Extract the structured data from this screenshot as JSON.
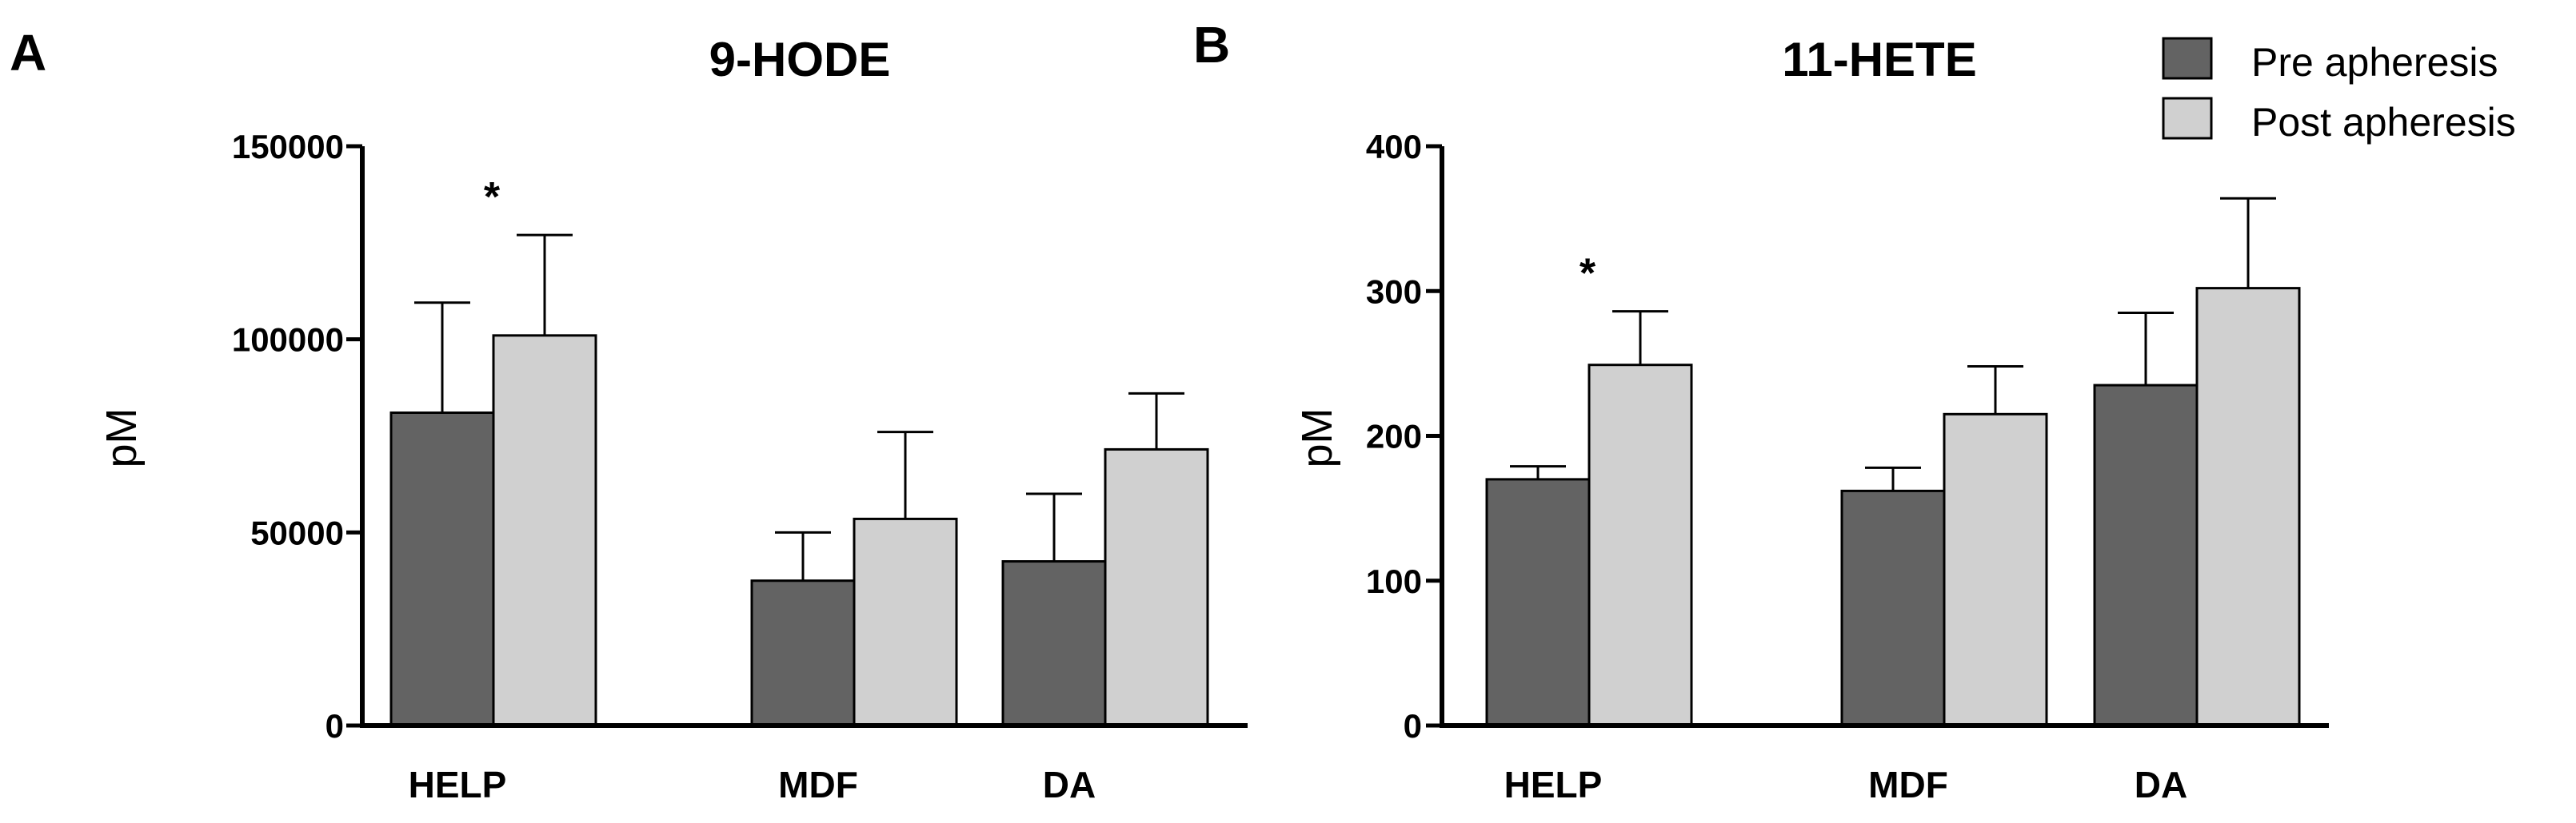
{
  "chart_data": [
    {
      "panel": "A",
      "type": "bar",
      "title": "9-HODE",
      "ylabel": "pM",
      "xlabel": "",
      "ylim": [
        0,
        150000
      ],
      "yticks": [
        0,
        50000,
        100000,
        150000
      ],
      "ytick_labels": [
        "0",
        "50000",
        "100000",
        "150000"
      ],
      "categories": [
        "HELP",
        "MDF",
        "DA"
      ],
      "series": [
        {
          "name": "Pre apheresis",
          "values": [
            81000,
            37500,
            42500
          ],
          "errors": [
            28500,
            12500,
            17500
          ]
        },
        {
          "name": "Post apheresis",
          "values": [
            101000,
            53500,
            71500
          ],
          "errors": [
            26000,
            22500,
            14500
          ]
        }
      ],
      "annotations": [
        {
          "category": "HELP",
          "text": "*"
        }
      ]
    },
    {
      "panel": "B",
      "type": "bar",
      "title": "11-HETE",
      "ylabel": "pM",
      "xlabel": "",
      "ylim": [
        0,
        400
      ],
      "yticks": [
        0,
        100,
        200,
        300,
        400
      ],
      "ytick_labels": [
        "0",
        "100",
        "200",
        "300",
        "400"
      ],
      "categories": [
        "HELP",
        "MDF",
        "DA"
      ],
      "series": [
        {
          "name": "Pre apheresis",
          "values": [
            170,
            162,
            235
          ],
          "errors": [
            9,
            16,
            50
          ]
        },
        {
          "name": "Post apheresis",
          "values": [
            249,
            215,
            302
          ],
          "errors": [
            37,
            33,
            62
          ]
        }
      ],
      "annotations": [
        {
          "category": "HELP",
          "text": "*"
        }
      ]
    }
  ],
  "legend": {
    "items": [
      {
        "label": "Pre apheresis",
        "color": "#636363"
      },
      {
        "label": "Post apheresis",
        "color": "#d0d0d0"
      }
    ]
  },
  "colors": {
    "pre": "#636363",
    "post": "#d0d0d0",
    "axis": "#000000"
  }
}
